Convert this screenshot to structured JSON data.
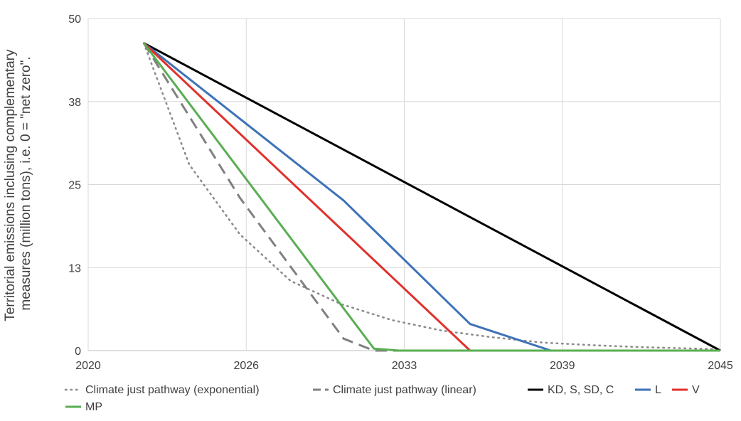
{
  "chart_data": {
    "type": "line",
    "ylabel_lines": [
      "Territorial emissions inclusing complementary",
      "measures  (million tons), i.e. 0 = \"net zero\"."
    ],
    "x_ticks": [
      2020,
      2026,
      2033,
      2039,
      2045
    ],
    "y_ticks": [
      0,
      13,
      25,
      38,
      50
    ],
    "xlim": [
      2020,
      2045
    ],
    "ylim": [
      0,
      50
    ],
    "grid": true,
    "legend_position": "bottom",
    "series": [
      {
        "name": "Climate just pathway (exponential)",
        "color": "#8c8c8c",
        "style": "dotted",
        "points": [
          [
            2022.2,
            46.3
          ],
          [
            2024,
            28
          ],
          [
            2026,
            17.5
          ],
          [
            2028,
            10.5
          ],
          [
            2030,
            7
          ],
          [
            2032,
            4.6
          ],
          [
            2034,
            3
          ],
          [
            2036,
            2
          ],
          [
            2038,
            1.2
          ],
          [
            2040,
            0.8
          ],
          [
            2042,
            0.5
          ],
          [
            2045,
            0.2
          ]
        ]
      },
      {
        "name": "Climate just pathway (linear)",
        "color": "#808080",
        "style": "dashed",
        "points": [
          [
            2022.2,
            46.3
          ],
          [
            2026,
            23
          ],
          [
            2030.1,
            1.8
          ],
          [
            2031.3,
            0
          ],
          [
            2045,
            0
          ]
        ]
      },
      {
        "name": "KD, S, SD, C",
        "color": "#000000",
        "style": "solid",
        "points": [
          [
            2022.2,
            46.3
          ],
          [
            2045,
            0
          ]
        ]
      },
      {
        "name": "L",
        "color": "#3e72b8",
        "style": "solid",
        "points": [
          [
            2022.2,
            46.3
          ],
          [
            2030.1,
            22.6
          ],
          [
            2035.1,
            4
          ],
          [
            2038.3,
            0
          ],
          [
            2045,
            0
          ]
        ]
      },
      {
        "name": "V",
        "color": "#e0312c",
        "style": "solid",
        "points": [
          [
            2022.2,
            46.3
          ],
          [
            2035.1,
            0
          ],
          [
            2045,
            0
          ]
        ]
      },
      {
        "name": "MP",
        "color": "#5aae52",
        "style": "solid",
        "points": [
          [
            2022.2,
            46.3
          ],
          [
            2031.3,
            0.3
          ],
          [
            2032.3,
            0
          ],
          [
            2045,
            0
          ]
        ]
      }
    ]
  }
}
